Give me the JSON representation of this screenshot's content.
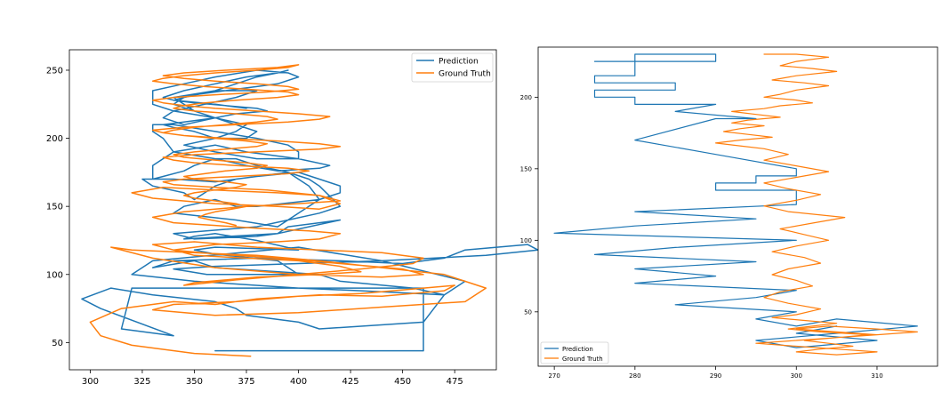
{
  "chart_data": [
    {
      "type": "line",
      "xlim": [
        290,
        495
      ],
      "ylim": [
        30,
        265
      ],
      "x_ticks": [
        300,
        325,
        350,
        375,
        400,
        425,
        450,
        475
      ],
      "y_ticks": [
        50,
        100,
        150,
        200,
        250
      ],
      "legend_position": "top-right",
      "series": [
        {
          "name": "Prediction",
          "color": "#1f77b4",
          "x": [
            360,
            460,
            460,
            320,
            315,
            340,
            305,
            296,
            310,
            330,
            360,
            370,
            375,
            400,
            410,
            460,
            470,
            480,
            440,
            400,
            330,
            320,
            350,
            400,
            430,
            470,
            455,
            420,
            410,
            360,
            350,
            330,
            340,
            380,
            420,
            450,
            470,
            480,
            510,
            515,
            490,
            440,
            400,
            360,
            340,
            356,
            400,
            390,
            360,
            350,
            360,
            400,
            380,
            360,
            350,
            345,
            390,
            405,
            420,
            410,
            395,
            390,
            380,
            350,
            340,
            380,
            395,
            410,
            420,
            410,
            405,
            395,
            370,
            360,
            350,
            345,
            330,
            325,
            340,
            360,
            380,
            400,
            410,
            420,
            420,
            410,
            380,
            370,
            360,
            345,
            340,
            370,
            390,
            400,
            410,
            405,
            395,
            380,
            370,
            360,
            350,
            345,
            335,
            330,
            330,
            340,
            360,
            375,
            400,
            415,
            410,
            390,
            375,
            360,
            340,
            335,
            330,
            330,
            340,
            360,
            380,
            395,
            400,
            400,
            380,
            360,
            345,
            360,
            370,
            375,
            360,
            350,
            345,
            340,
            360,
            380,
            370,
            355,
            340,
            335,
            345,
            360,
            340,
            330,
            330,
            345,
            360,
            380,
            395,
            400,
            390,
            380,
            370,
            360,
            350,
            345,
            340,
            350,
            365,
            380,
            385,
            370,
            360,
            345,
            335,
            340,
            350,
            360,
            375,
            380,
            370,
            360,
            350,
            340,
            345,
            360,
            370,
            380,
            390,
            395,
            390,
            375,
            360,
            345,
            335,
            340,
            360,
            375
          ],
          "y": [
            44,
            44,
            90,
            90,
            60,
            55,
            75,
            82,
            90,
            85,
            80,
            75,
            70,
            65,
            60,
            65,
            85,
            95,
            110,
            120,
            110,
            100,
            95,
            90,
            88,
            85,
            90,
            95,
            100,
            105,
            110,
            105,
            110,
            112,
            110,
            108,
            112,
            118,
            122,
            118,
            114,
            110,
            108,
            106,
            104,
            100,
            100,
            110,
            115,
            118,
            120,
            118,
            125,
            130,
            128,
            126,
            130,
            135,
            140,
            138,
            135,
            130,
            128,
            126,
            130,
            135,
            140,
            145,
            150,
            165,
            170,
            175,
            170,
            165,
            155,
            160,
            165,
            170,
            170,
            168,
            172,
            175,
            170,
            165,
            160,
            155,
            150,
            150,
            155,
            150,
            145,
            140,
            135,
            145,
            155,
            165,
            175,
            180,
            185,
            185,
            180,
            176,
            172,
            170,
            180,
            190,
            195,
            190,
            185,
            180,
            178,
            176,
            180,
            185,
            190,
            200,
            205,
            210,
            210,
            205,
            200,
            195,
            190,
            185,
            185,
            190,
            195,
            200,
            205,
            210,
            215,
            220,
            225,
            230,
            235,
            235,
            230,
            225,
            220,
            215,
            210,
            215,
            220,
            225,
            235,
            240,
            245,
            250,
            248,
            245,
            240,
            238,
            236,
            234,
            232,
            230,
            228,
            226,
            224,
            222,
            220,
            218,
            215,
            212,
            210,
            208,
            205,
            200,
            200,
            205,
            210,
            215,
            220,
            225,
            230,
            235,
            240,
            245,
            248,
            250,
            248,
            245,
            240,
            235,
            230,
            228,
            225,
            222
          ]
        },
        {
          "name": "Ground Truth",
          "color": "#ff7f0e",
          "x": [
            377,
            350,
            320,
            305,
            300,
            315,
            340,
            360,
            380,
            410,
            440,
            470,
            475,
            460,
            430,
            400,
            370,
            340,
            330,
            360,
            400,
            440,
            480,
            490,
            470,
            440,
            410,
            380,
            350,
            320,
            310,
            330,
            360,
            400,
            440,
            460,
            450,
            420,
            390,
            360,
            340,
            330,
            350,
            380,
            410,
            440,
            460,
            455,
            430,
            400,
            370,
            345,
            350,
            380,
            410,
            430,
            420,
            400,
            375,
            350,
            340,
            360,
            390,
            410,
            420,
            405,
            380,
            360,
            340,
            330,
            345,
            375,
            400,
            420,
            410,
            390,
            360,
            335,
            320,
            330,
            360,
            390,
            410,
            420,
            410,
            385,
            360,
            340,
            335,
            345,
            370,
            395,
            405,
            395,
            370,
            350,
            340,
            335,
            350,
            380,
            410,
            420,
            410,
            390,
            365,
            345,
            335,
            330,
            345,
            370,
            395,
            410,
            415,
            400,
            380,
            360,
            345,
            335,
            330,
            340,
            360,
            385,
            400,
            395,
            380,
            360,
            345,
            335,
            345,
            365,
            390,
            400,
            395,
            380,
            360,
            345,
            335,
            330,
            340,
            355,
            375,
            395,
            400,
            390,
            370,
            355,
            345,
            340,
            350,
            370,
            385,
            390,
            380,
            365,
            350,
            340,
            335,
            345,
            360,
            375,
            385,
            380,
            365,
            350,
            340,
            345,
            360,
            375,
            385,
            380,
            365,
            355,
            345,
            350,
            365,
            375,
            370,
            360,
            350,
            345,
            350,
            360,
            370,
            375,
            368,
            360,
            355,
            352,
            358,
            365,
            370
          ],
          "y": [
            40,
            42,
            48,
            55,
            65,
            75,
            80,
            78,
            82,
            85,
            84,
            88,
            92,
            90,
            86,
            84,
            80,
            78,
            74,
            70,
            72,
            76,
            80,
            90,
            100,
            105,
            110,
            114,
            116,
            118,
            120,
            112,
            105,
            100,
            98,
            100,
            104,
            108,
            112,
            115,
            118,
            122,
            124,
            120,
            118,
            116,
            112,
            108,
            104,
            100,
            96,
            92,
            94,
            98,
            100,
            102,
            106,
            110,
            112,
            114,
            118,
            122,
            124,
            126,
            130,
            132,
            134,
            136,
            138,
            142,
            146,
            150,
            152,
            154,
            158,
            160,
            162,
            164,
            160,
            156,
            152,
            150,
            148,
            152,
            158,
            162,
            164,
            166,
            168,
            170,
            172,
            174,
            176,
            178,
            180,
            182,
            184,
            186,
            188,
            190,
            192,
            194,
            196,
            198,
            200,
            202,
            204,
            206,
            208,
            210,
            212,
            214,
            216,
            218,
            220,
            222,
            224,
            226,
            228,
            230,
            232,
            234,
            236,
            238,
            240,
            242,
            244,
            246,
            248,
            250,
            252,
            254,
            252,
            250,
            248,
            246,
            244,
            242,
            240,
            238,
            236,
            234,
            232,
            230,
            228,
            226,
            224,
            222,
            220,
            218,
            216,
            214,
            212,
            210,
            208,
            206,
            204,
            202,
            200,
            198,
            196,
            194,
            192,
            190,
            188,
            186,
            184,
            182,
            180,
            178,
            176,
            174,
            172,
            170,
            168,
            166,
            164,
            162,
            160,
            158,
            156,
            154,
            152,
            150,
            148,
            146,
            144,
            142,
            140,
            138,
            136
          ]
        }
      ]
    },
    {
      "type": "line",
      "xlim": [
        268,
        317.5
      ],
      "ylim": [
        12,
        235
      ],
      "x_ticks": [
        270,
        280,
        290,
        300,
        310
      ],
      "y_ticks": [
        50,
        100,
        150,
        200
      ],
      "legend_position": "bottom-left",
      "series": [
        {
          "name": "Prediction",
          "color": "#1f77b4",
          "x": [
            275,
            280,
            280,
            290,
            290,
            280,
            280,
            275,
            275,
            285,
            285,
            275,
            275,
            280,
            280,
            290,
            285,
            285,
            295,
            290,
            280,
            290,
            300,
            300,
            295,
            295,
            290,
            290,
            300,
            300,
            280,
            280,
            295,
            295,
            280,
            280,
            270,
            270,
            300,
            300,
            285,
            285,
            275,
            275,
            295,
            295,
            280,
            280,
            290,
            290,
            280,
            280,
            300,
            300,
            295,
            295,
            285,
            285,
            300,
            300,
            295,
            295,
            300,
            300,
            305,
            305,
            315,
            315,
            305,
            305,
            295,
            295,
            300,
            300,
            310,
            310,
            300,
            300,
            305,
            305
          ],
          "y": [
            225,
            225,
            230,
            230,
            225,
            225,
            215,
            215,
            210,
            210,
            205,
            205,
            200,
            200,
            195,
            195,
            190,
            190,
            185,
            185,
            170,
            160,
            150,
            145,
            145,
            140,
            140,
            135,
            135,
            125,
            120,
            120,
            115,
            115,
            110,
            110,
            105,
            105,
            100,
            100,
            95,
            95,
            90,
            90,
            85,
            85,
            80,
            80,
            75,
            75,
            70,
            70,
            65,
            65,
            60,
            60,
            55,
            55,
            50,
            50,
            45,
            45,
            40,
            40,
            45,
            45,
            40,
            40,
            35,
            35,
            30,
            30,
            25,
            25,
            30,
            30,
            35,
            35,
            40,
            40
          ]
        },
        {
          "name": "Ground Truth",
          "color": "#ff7f0e",
          "x": [
            296,
            300,
            304,
            300,
            298,
            302,
            305,
            300,
            297,
            301,
            304,
            300,
            298,
            296,
            300,
            302,
            298,
            296,
            292,
            295,
            298,
            294,
            292,
            296,
            293,
            291,
            294,
            297,
            293,
            290,
            293,
            296,
            299,
            296,
            300,
            304,
            300,
            296,
            299,
            303,
            300,
            296,
            299,
            306,
            302,
            298,
            301,
            304,
            300,
            297,
            301,
            303,
            299,
            297,
            300,
            302,
            298,
            296,
            299,
            303,
            300,
            297,
            301,
            305,
            302,
            299,
            303,
            309,
            305,
            301,
            304,
            307,
            303,
            300,
            305,
            310,
            305,
            300,
            295,
            300,
            305,
            310,
            305,
            300,
            304,
            310,
            315,
            310,
            305,
            300
          ],
          "y": [
            230,
            230,
            228,
            225,
            222,
            220,
            218,
            215,
            212,
            210,
            208,
            205,
            202,
            200,
            198,
            196,
            194,
            192,
            190,
            188,
            186,
            184,
            182,
            180,
            178,
            176,
            174,
            172,
            170,
            168,
            166,
            164,
            160,
            156,
            152,
            148,
            144,
            140,
            136,
            132,
            128,
            124,
            120,
            116,
            112,
            108,
            104,
            100,
            96,
            92,
            88,
            84,
            80,
            76,
            72,
            68,
            64,
            60,
            56,
            52,
            48,
            46,
            44,
            42,
            40,
            38,
            36,
            34,
            32,
            30,
            28,
            26,
            24,
            22,
            20,
            22,
            24,
            26,
            28,
            30,
            32,
            34,
            36,
            38,
            40,
            38,
            36,
            34,
            32,
            30
          ]
        }
      ]
    }
  ]
}
